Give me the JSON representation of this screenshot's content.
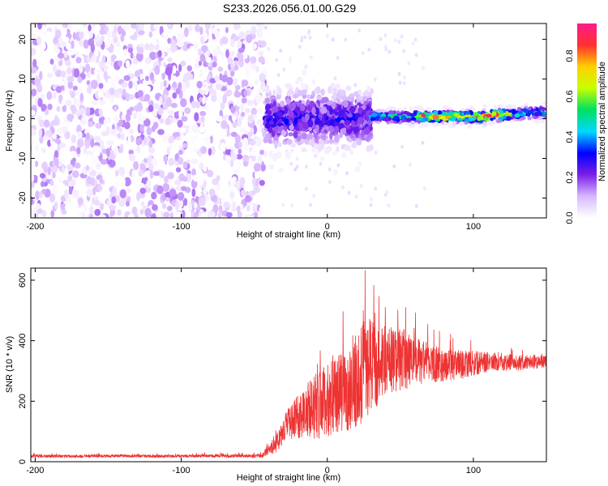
{
  "chart_data": [
    {
      "type": "heatmap",
      "title": "S233.2026.056.01.00.G29",
      "xlabel": "Height of straight line (km)",
      "ylabel": "Frequency (Hz)",
      "xlim": [
        -203,
        150
      ],
      "ylim": [
        -25,
        24
      ],
      "xticks": [
        -200,
        -100,
        0,
        100
      ],
      "xtick_labels": [
        "-200",
        "-100",
        "0",
        "100"
      ],
      "yticks": [
        -20,
        -10,
        0,
        10,
        20
      ],
      "ytick_labels": [
        "-20",
        "-10",
        "0",
        "10",
        "20"
      ],
      "colorbar": {
        "label": "Normalized spectral amplitude",
        "range": [
          0,
          0.96
        ],
        "ticks": [
          0.0,
          0.2,
          0.4,
          0.6,
          0.8
        ],
        "tick_labels": [
          "0.0",
          "0.2",
          "0.4",
          "0.6",
          "0.8"
        ],
        "colormap": [
          "#ffffff",
          "#d8b8ff",
          "#7b1fe6",
          "#0000ff",
          "#00d8ff",
          "#00e060",
          "#c8ff00",
          "#ffd000",
          "#ff3030",
          "#ff1a8c"
        ]
      },
      "regions": [
        {
          "x_range": [
            -203,
            -43
          ],
          "freq_range": [
            -25,
            24
          ],
          "amplitude": "low (0.0-0.15), noise-like"
        },
        {
          "x_range": [
            -43,
            30
          ],
          "freq_range": [
            -7,
            7
          ],
          "amplitude": "0.1-0.3, centred near 0 Hz"
        },
        {
          "x_range": [
            30,
            150
          ],
          "freq_range": [
            -1,
            3
          ],
          "amplitude": "0.2-0.9, narrow line near 0-1 Hz"
        }
      ]
    },
    {
      "type": "line",
      "xlabel": "Height of straight line (km)",
      "ylabel": "SNR (10 * v/v)",
      "xlim": [
        -203,
        150
      ],
      "ylim": [
        0,
        640
      ],
      "xticks": [
        -200,
        -100,
        0,
        100
      ],
      "xtick_labels": [
        "-200",
        "-100",
        "0",
        "100"
      ],
      "yticks": [
        0,
        200,
        400,
        600
      ],
      "ytick_labels": [
        "0",
        "200",
        "400",
        "600"
      ],
      "color": "#ee3333",
      "series": [
        {
          "x": [
            -203,
            -180,
            -150,
            -120,
            -90,
            -60,
            -45,
            -35,
            -28,
            -20,
            -10,
            0,
            10,
            20,
            25,
            30,
            40,
            50,
            60,
            70,
            80,
            90,
            100,
            110,
            120,
            130,
            140,
            150
          ],
          "y": [
            18,
            18,
            19,
            18,
            19,
            19,
            20,
            60,
            120,
            150,
            180,
            200,
            230,
            260,
            300,
            320,
            330,
            340,
            330,
            325,
            320,
            320,
            325,
            330,
            330,
            325,
            330,
            330
          ],
          "spread": [
            8,
            8,
            8,
            8,
            8,
            9,
            10,
            50,
            80,
            120,
            180,
            200,
            220,
            250,
            280,
            260,
            200,
            180,
            140,
            110,
            90,
            80,
            70,
            55,
            50,
            45,
            40,
            35
          ],
          "peak_max": 635
        }
      ]
    }
  ]
}
